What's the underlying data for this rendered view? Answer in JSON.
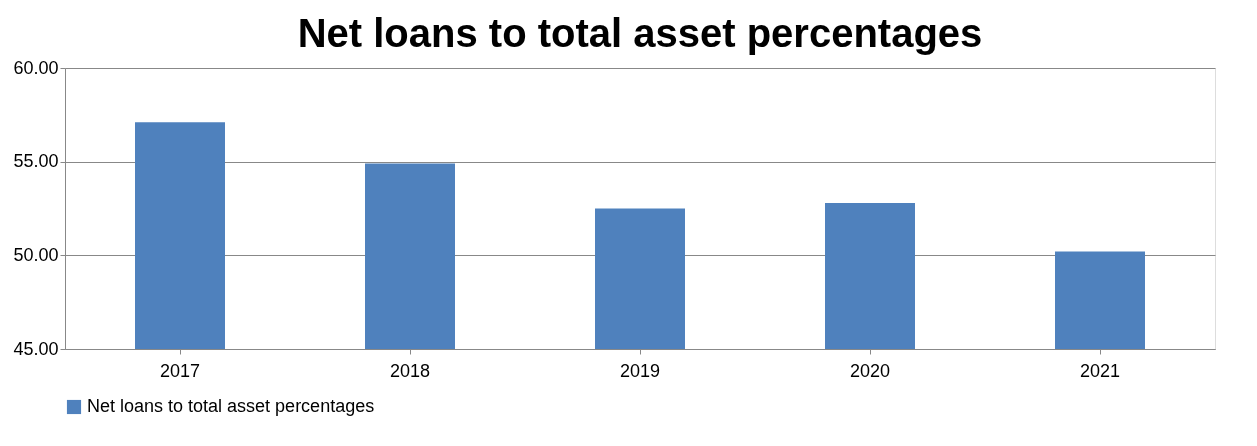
{
  "chart_data": {
    "type": "bar",
    "title": "Net loans to total asset percentages",
    "categories": [
      "2017",
      "2018",
      "2019",
      "2020",
      "2021"
    ],
    "series": [
      {
        "name": "Net loans to total asset percentages",
        "color": "#4f81bd",
        "values": [
          57.1,
          54.9,
          52.5,
          52.8,
          50.2
        ]
      }
    ],
    "ylim": [
      45,
      60
    ],
    "yticks": [
      {
        "value": 45,
        "label": "45.00"
      },
      {
        "value": 50,
        "label": "50.00"
      },
      {
        "value": 55,
        "label": "55.00"
      },
      {
        "value": 60,
        "label": "60.00"
      }
    ],
    "grid": "y",
    "legend": "bottom"
  }
}
